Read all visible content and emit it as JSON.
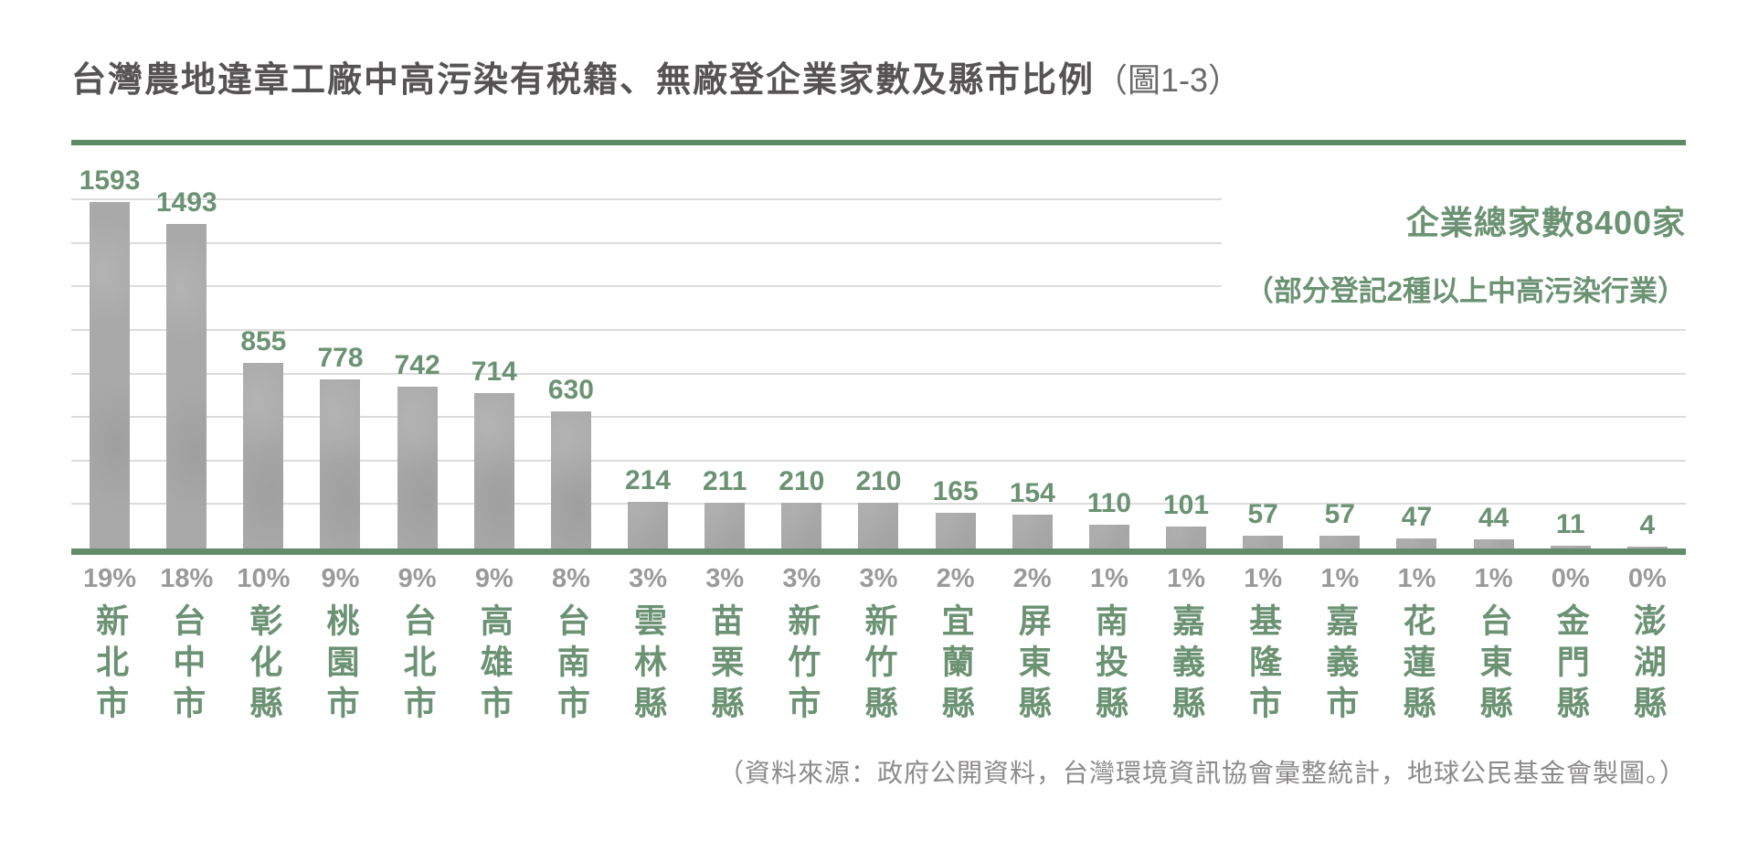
{
  "title": {
    "main": "台灣農地違章工廠中高污染有税籍、無廠登企業家數及縣市比例",
    "figure_label": "（圖1-3）"
  },
  "annotation": {
    "line1": "企業總家數8400家",
    "line2": "（部分登記2種以上中高污染行業）"
  },
  "source": "（資料來源：政府公開資料，台灣環境資訊協會彙整統計，地球公民基金會製圖。）",
  "colors": {
    "accent_green_text": "#6b9273",
    "axis_line_green": "#5d8a65",
    "bar_gray": "#a9a9a9",
    "gridline_gray": "#dcdcdc",
    "title_gray": "#565354",
    "percent_gray": "#9b9a9a",
    "source_gray": "#8c8a8a"
  },
  "chart_data": {
    "type": "bar",
    "title": "台灣農地違章工廠中高污染有税籍、無廠登企業家數及縣市比例（圖1-3）",
    "categories": [
      "新北市",
      "台中市",
      "彰化縣",
      "桃園市",
      "台北市",
      "高雄市",
      "台南市",
      "雲林縣",
      "苗栗縣",
      "新竹市",
      "新竹縣",
      "宜蘭縣",
      "屏東縣",
      "南投縣",
      "嘉義縣",
      "基隆市",
      "嘉義市",
      "花蓮縣",
      "台東縣",
      "金門縣",
      "澎湖縣"
    ],
    "values": [
      1593,
      1493,
      855,
      778,
      742,
      714,
      630,
      214,
      211,
      210,
      210,
      165,
      154,
      110,
      101,
      57,
      57,
      47,
      44,
      11,
      4
    ],
    "percentages": [
      "19%",
      "18%",
      "10%",
      "9%",
      "9%",
      "9%",
      "8%",
      "3%",
      "3%",
      "3%",
      "3%",
      "2%",
      "2%",
      "1%",
      "1%",
      "1%",
      "1%",
      "1%",
      "1%",
      "0%",
      "0%"
    ],
    "total_companies": 8400,
    "total_note": "企業總家數8400家（部分登記2種以上中高污染行業）",
    "xlabel": "",
    "ylabel": "",
    "ylim": [
      0,
      1860
    ],
    "gridline_interval": 200,
    "gridline_max": 1600,
    "grid": true,
    "legend": false
  }
}
